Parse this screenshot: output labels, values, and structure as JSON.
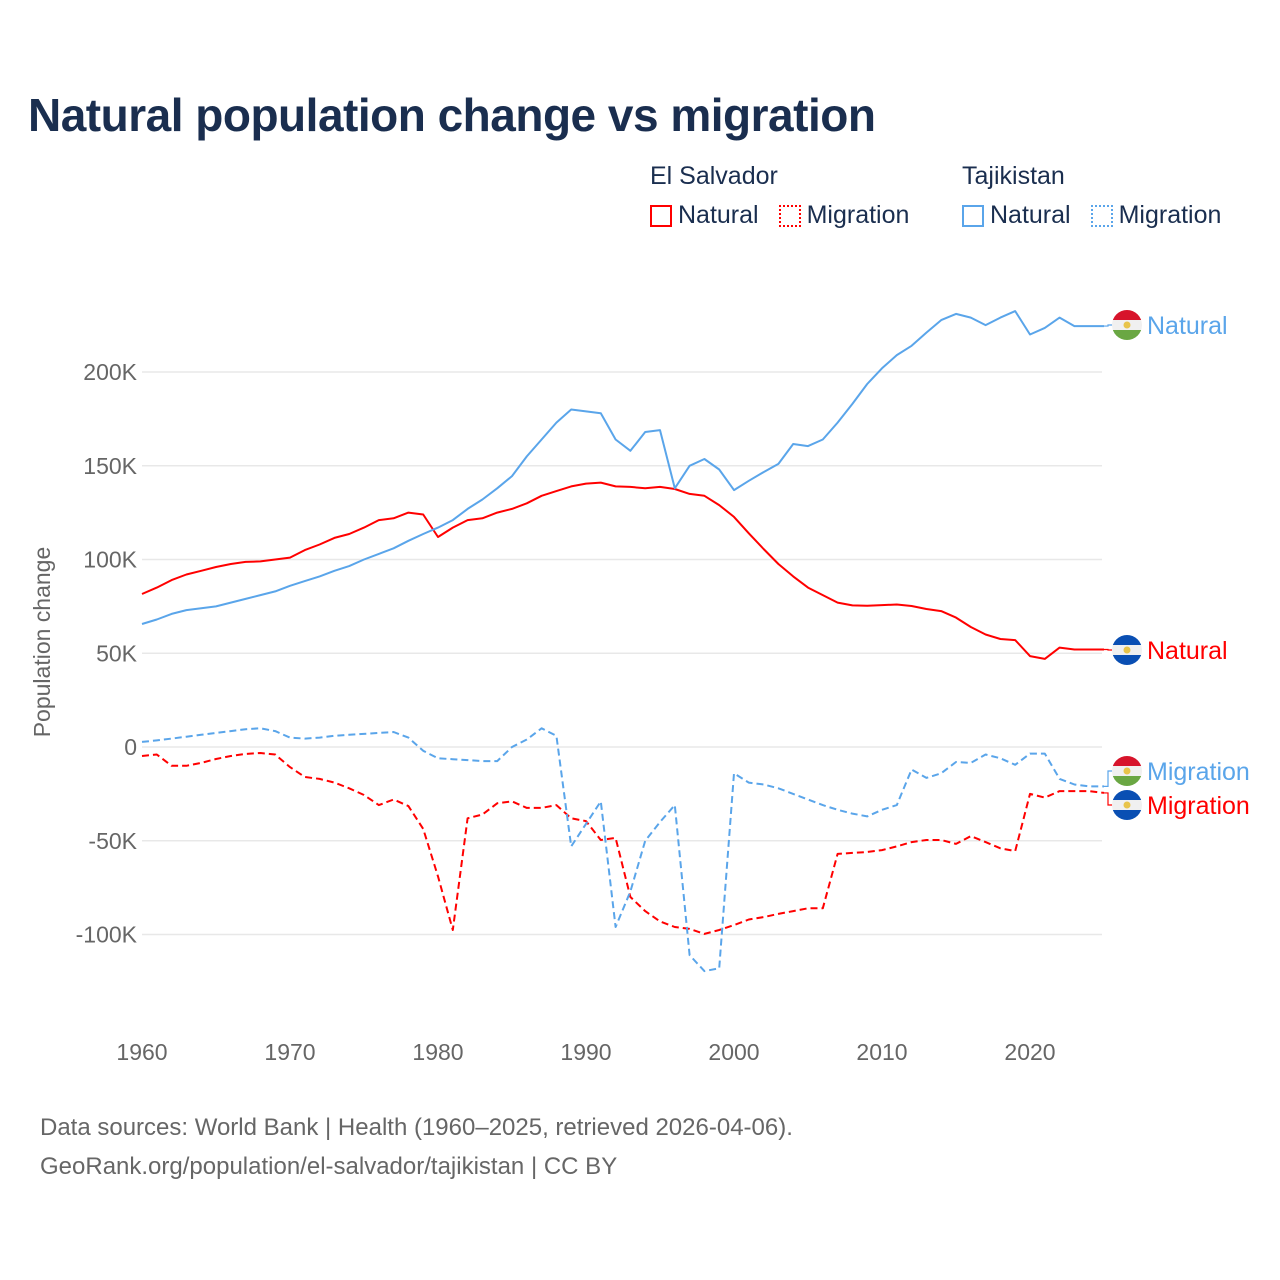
{
  "title": "Natural population change vs migration",
  "legend": [
    {
      "country": "El Salvador",
      "color": "#ff0000",
      "items": [
        {
          "label": "Natural",
          "style": "solid"
        },
        {
          "label": "Migration",
          "style": "dotted"
        }
      ]
    },
    {
      "country": "Tajikistan",
      "color": "#5aa5ea",
      "items": [
        {
          "label": "Natural",
          "style": "solid"
        },
        {
          "label": "Migration",
          "style": "dotted"
        }
      ]
    }
  ],
  "footer": {
    "line1": "Data sources: World Bank | Health (1960–2025, retrieved 2026-04-06).",
    "line2": "GeoRank.org/population/el-salvador/tajikistan | CC BY"
  },
  "chart_data": {
    "type": "line",
    "title": "Natural population change vs migration",
    "xlabel": "",
    "ylabel": "Population change",
    "xlim": [
      1960,
      2025
    ],
    "ylim": [
      -130000,
      240000
    ],
    "xticks": [
      1960,
      1970,
      1980,
      1990,
      2000,
      2010,
      2020
    ],
    "yticks": [
      {
        "v": 200,
        "label": "200K"
      },
      {
        "v": 150,
        "label": "150K"
      },
      {
        "v": 100,
        "label": "100K"
      },
      {
        "v": 50,
        "label": "50K"
      },
      {
        "v": 0,
        "label": "0"
      },
      {
        "v": -50,
        "label": "-50K"
      },
      {
        "v": -100,
        "label": "-100K"
      }
    ],
    "units": "thousands",
    "grid": true,
    "legend_position": "top-right",
    "x_start": 1960,
    "series": [
      {
        "name": "El Salvador Natural",
        "end_label": "Natural",
        "flag": "el-salvador",
        "color": "#ff0000",
        "dash": "solid",
        "values": [
          81.6,
          85,
          89,
          92,
          94,
          96,
          97.6,
          98.7,
          99,
          100,
          101,
          105,
          108,
          111.5,
          113.6,
          117,
          121,
          122,
          125,
          124,
          112,
          117,
          121,
          122,
          125,
          127,
          130,
          134,
          136.5,
          139,
          140.5,
          141,
          139,
          138.7,
          138,
          138.7,
          137.6,
          135,
          134,
          129,
          122.7,
          114,
          105.6,
          97.6,
          91,
          85,
          81,
          77,
          75.5,
          75.3,
          75.7,
          76,
          75.2,
          73.6,
          72.5,
          69,
          64,
          60,
          57.6,
          57,
          48.5,
          47,
          53,
          52,
          52,
          52
        ]
      },
      {
        "name": "Tajikistan Natural",
        "end_label": "Natural",
        "flag": "tajikistan",
        "color": "#5aa5ea",
        "dash": "solid",
        "values": [
          65.6,
          68,
          71,
          73,
          74,
          75,
          77,
          79,
          81,
          83,
          86,
          88.5,
          91,
          94,
          96.5,
          100,
          103,
          106,
          110,
          113.6,
          117,
          121,
          127,
          132,
          138,
          144.5,
          155,
          164,
          173,
          180,
          179,
          178,
          164,
          158,
          168,
          169,
          138,
          150,
          153.6,
          148,
          137,
          142,
          146.6,
          151,
          161.6,
          160.5,
          164,
          173,
          183,
          193.6,
          202,
          209,
          214,
          221,
          227.7,
          231,
          229,
          225,
          229,
          232.5,
          220,
          223.5,
          229,
          224.5,
          224.5,
          224.5
        ]
      },
      {
        "name": "El Salvador Migration",
        "end_label": "Migration",
        "flag": "el-salvador",
        "color": "#ff0000",
        "dash": "dashed",
        "values": [
          -4.8,
          -4,
          -10,
          -10,
          -8.5,
          -6.4,
          -4.8,
          -3.7,
          -3.2,
          -4,
          -10.7,
          -16,
          -17,
          -19,
          -22,
          -25.6,
          -31,
          -28,
          -31.5,
          -43.7,
          -69,
          -97.6,
          -38,
          -36,
          -30,
          -29,
          -32.5,
          -32.5,
          -31,
          -38,
          -39.5,
          -49.6,
          -48.5,
          -80,
          -87.5,
          -93,
          -96,
          -97,
          -99.7,
          -97.6,
          -95,
          -92,
          -90.7,
          -89,
          -87.5,
          -86,
          -86,
          -57,
          -56.5,
          -56,
          -55,
          -53,
          -50.7,
          -49.6,
          -49.6,
          -51.7,
          -47.5,
          -50.7,
          -54,
          -55.5,
          -25,
          -27,
          -23.5,
          -23.5,
          -23.5,
          -24.5
        ]
      },
      {
        "name": "Tajikistan Migration",
        "end_label": "Migration",
        "flag": "tajikistan",
        "color": "#5aa5ea",
        "dash": "dashed",
        "values": [
          2.7,
          3.5,
          4.5,
          5.5,
          6.5,
          7.5,
          8.5,
          9.5,
          10,
          8.5,
          5,
          4.5,
          5,
          6,
          6.5,
          7,
          7.5,
          8,
          5,
          -2,
          -6,
          -6.5,
          -7,
          -7.5,
          -7.5,
          0,
          4,
          10,
          6,
          -53,
          -41,
          -29,
          -96,
          -77,
          -50,
          -40,
          -31,
          -111,
          -119.5,
          -118,
          -14,
          -19,
          -20,
          -22,
          -25,
          -28,
          -31,
          -33.5,
          -35.5,
          -37,
          -33.5,
          -31,
          -12,
          -16.5,
          -14,
          -8,
          -8.5,
          -4,
          -6,
          -9.5,
          -3.5,
          -3.5,
          -17,
          -20,
          -21,
          -21
        ]
      }
    ]
  }
}
